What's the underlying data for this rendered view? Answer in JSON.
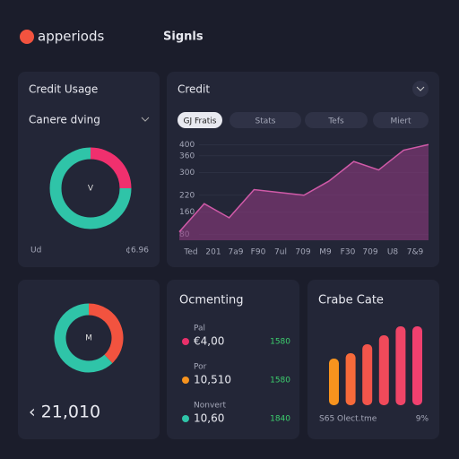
{
  "header": {
    "logo": "apperiods",
    "nav": "Signls"
  },
  "credit_usage": {
    "title": "Credit Usage",
    "dropdown": "Canere dving",
    "footer_left": "Ud",
    "footer_right": "¢6.96"
  },
  "credit": {
    "title": "Credit",
    "tabs": [
      "GJ Fratis",
      "Stats",
      "Tefs",
      "Miert"
    ]
  },
  "balance": {
    "amount": "‹ 21,010"
  },
  "ocmenting": {
    "title": "Ocmenting",
    "rows": [
      {
        "label": "Pal",
        "amount": "€4,00",
        "change": "1580",
        "color": "#e8306a"
      },
      {
        "label": "Por",
        "amount": "10,510",
        "change": "1580",
        "color": "#f7931e"
      },
      {
        "label": "Nonvert",
        "amount": "10,60",
        "change": "1840",
        "color": "#2fc4a8"
      }
    ]
  },
  "crabe": {
    "title": "Crabe Cate",
    "footer_left": "S65 Olect.tme",
    "footer_right": "9%"
  },
  "chart_data": [
    {
      "type": "pie",
      "center_label": "V",
      "values": [
        25,
        75
      ],
      "colors": [
        "#f0306e",
        "#2fc4a8"
      ]
    },
    {
      "type": "area",
      "categories": [
        "Ted",
        "201",
        "7a9",
        "F90",
        "7ul",
        "709",
        "M9",
        "F30",
        "709",
        "U8",
        "7&9"
      ],
      "values": [
        90,
        190,
        140,
        240,
        230,
        220,
        270,
        340,
        310,
        380,
        400
      ],
      "color": "#8e3a7e",
      "ylim": [
        60,
        420
      ],
      "yticks": [
        80,
        160,
        220,
        300,
        360,
        400
      ],
      "grid": true
    },
    {
      "type": "pie",
      "center_label": "M",
      "values": [
        38,
        62
      ],
      "colors": [
        "#f2533f",
        "#2fc4a8"
      ]
    },
    {
      "type": "bar",
      "values": [
        52,
        58,
        68,
        78,
        88,
        88
      ],
      "ylim": [
        0,
        100
      ],
      "colors": [
        "#f7931e",
        "#f76a3a",
        "#f2554b",
        "#f04a5a",
        "#ef4567",
        "#f0406f"
      ]
    }
  ]
}
